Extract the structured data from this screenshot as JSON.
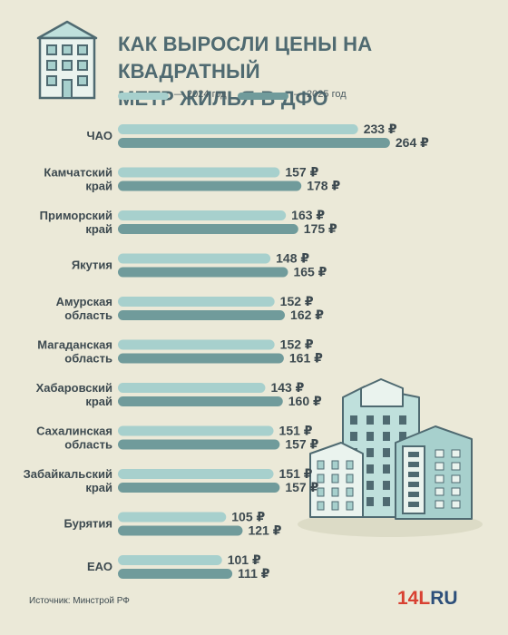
{
  "title_line1": "КАК ВЫРОСЛИ ЦЕНЫ НА КВАДРАТНЫЙ",
  "title_line2": "МЕТР ЖИЛЬЯ В ДФО",
  "legend": {
    "label_2024": "— 2024 год",
    "label_2025": "— 2025 год"
  },
  "colors": {
    "c2024": "#a7d0cd",
    "c2025": "#709b9b",
    "background": "#ebe9d8",
    "logo_red": "#d84132",
    "logo_blue": "#2d4f7a"
  },
  "source": "Источник: Минстрой РФ",
  "logo": {
    "num": "14",
    "l": "L",
    "ru": "RU"
  },
  "chart_data": {
    "type": "bar",
    "orientation": "horizontal",
    "currency_suffix": " ₽",
    "categories": [
      [
        "ЧАО"
      ],
      [
        "Камчатский",
        "край"
      ],
      [
        "Приморский",
        "край"
      ],
      [
        "Якутия"
      ],
      [
        "Амурская",
        "область"
      ],
      [
        "Магаданская",
        "область"
      ],
      [
        "Хабаровский",
        "край"
      ],
      [
        "Сахалинская",
        "область"
      ],
      [
        "Забайкальский",
        "край"
      ],
      [
        "Бурятия"
      ],
      [
        "ЕАО"
      ]
    ],
    "series": [
      {
        "name": "2024 год",
        "values": [
          233,
          157,
          163,
          148,
          152,
          152,
          143,
          151,
          151,
          105,
          101
        ]
      },
      {
        "name": "2025 год",
        "values": [
          264,
          178,
          175,
          165,
          162,
          161,
          160,
          157,
          157,
          121,
          111
        ]
      }
    ],
    "icons": [
      "house-icon",
      "buildings-illustration"
    ]
  }
}
